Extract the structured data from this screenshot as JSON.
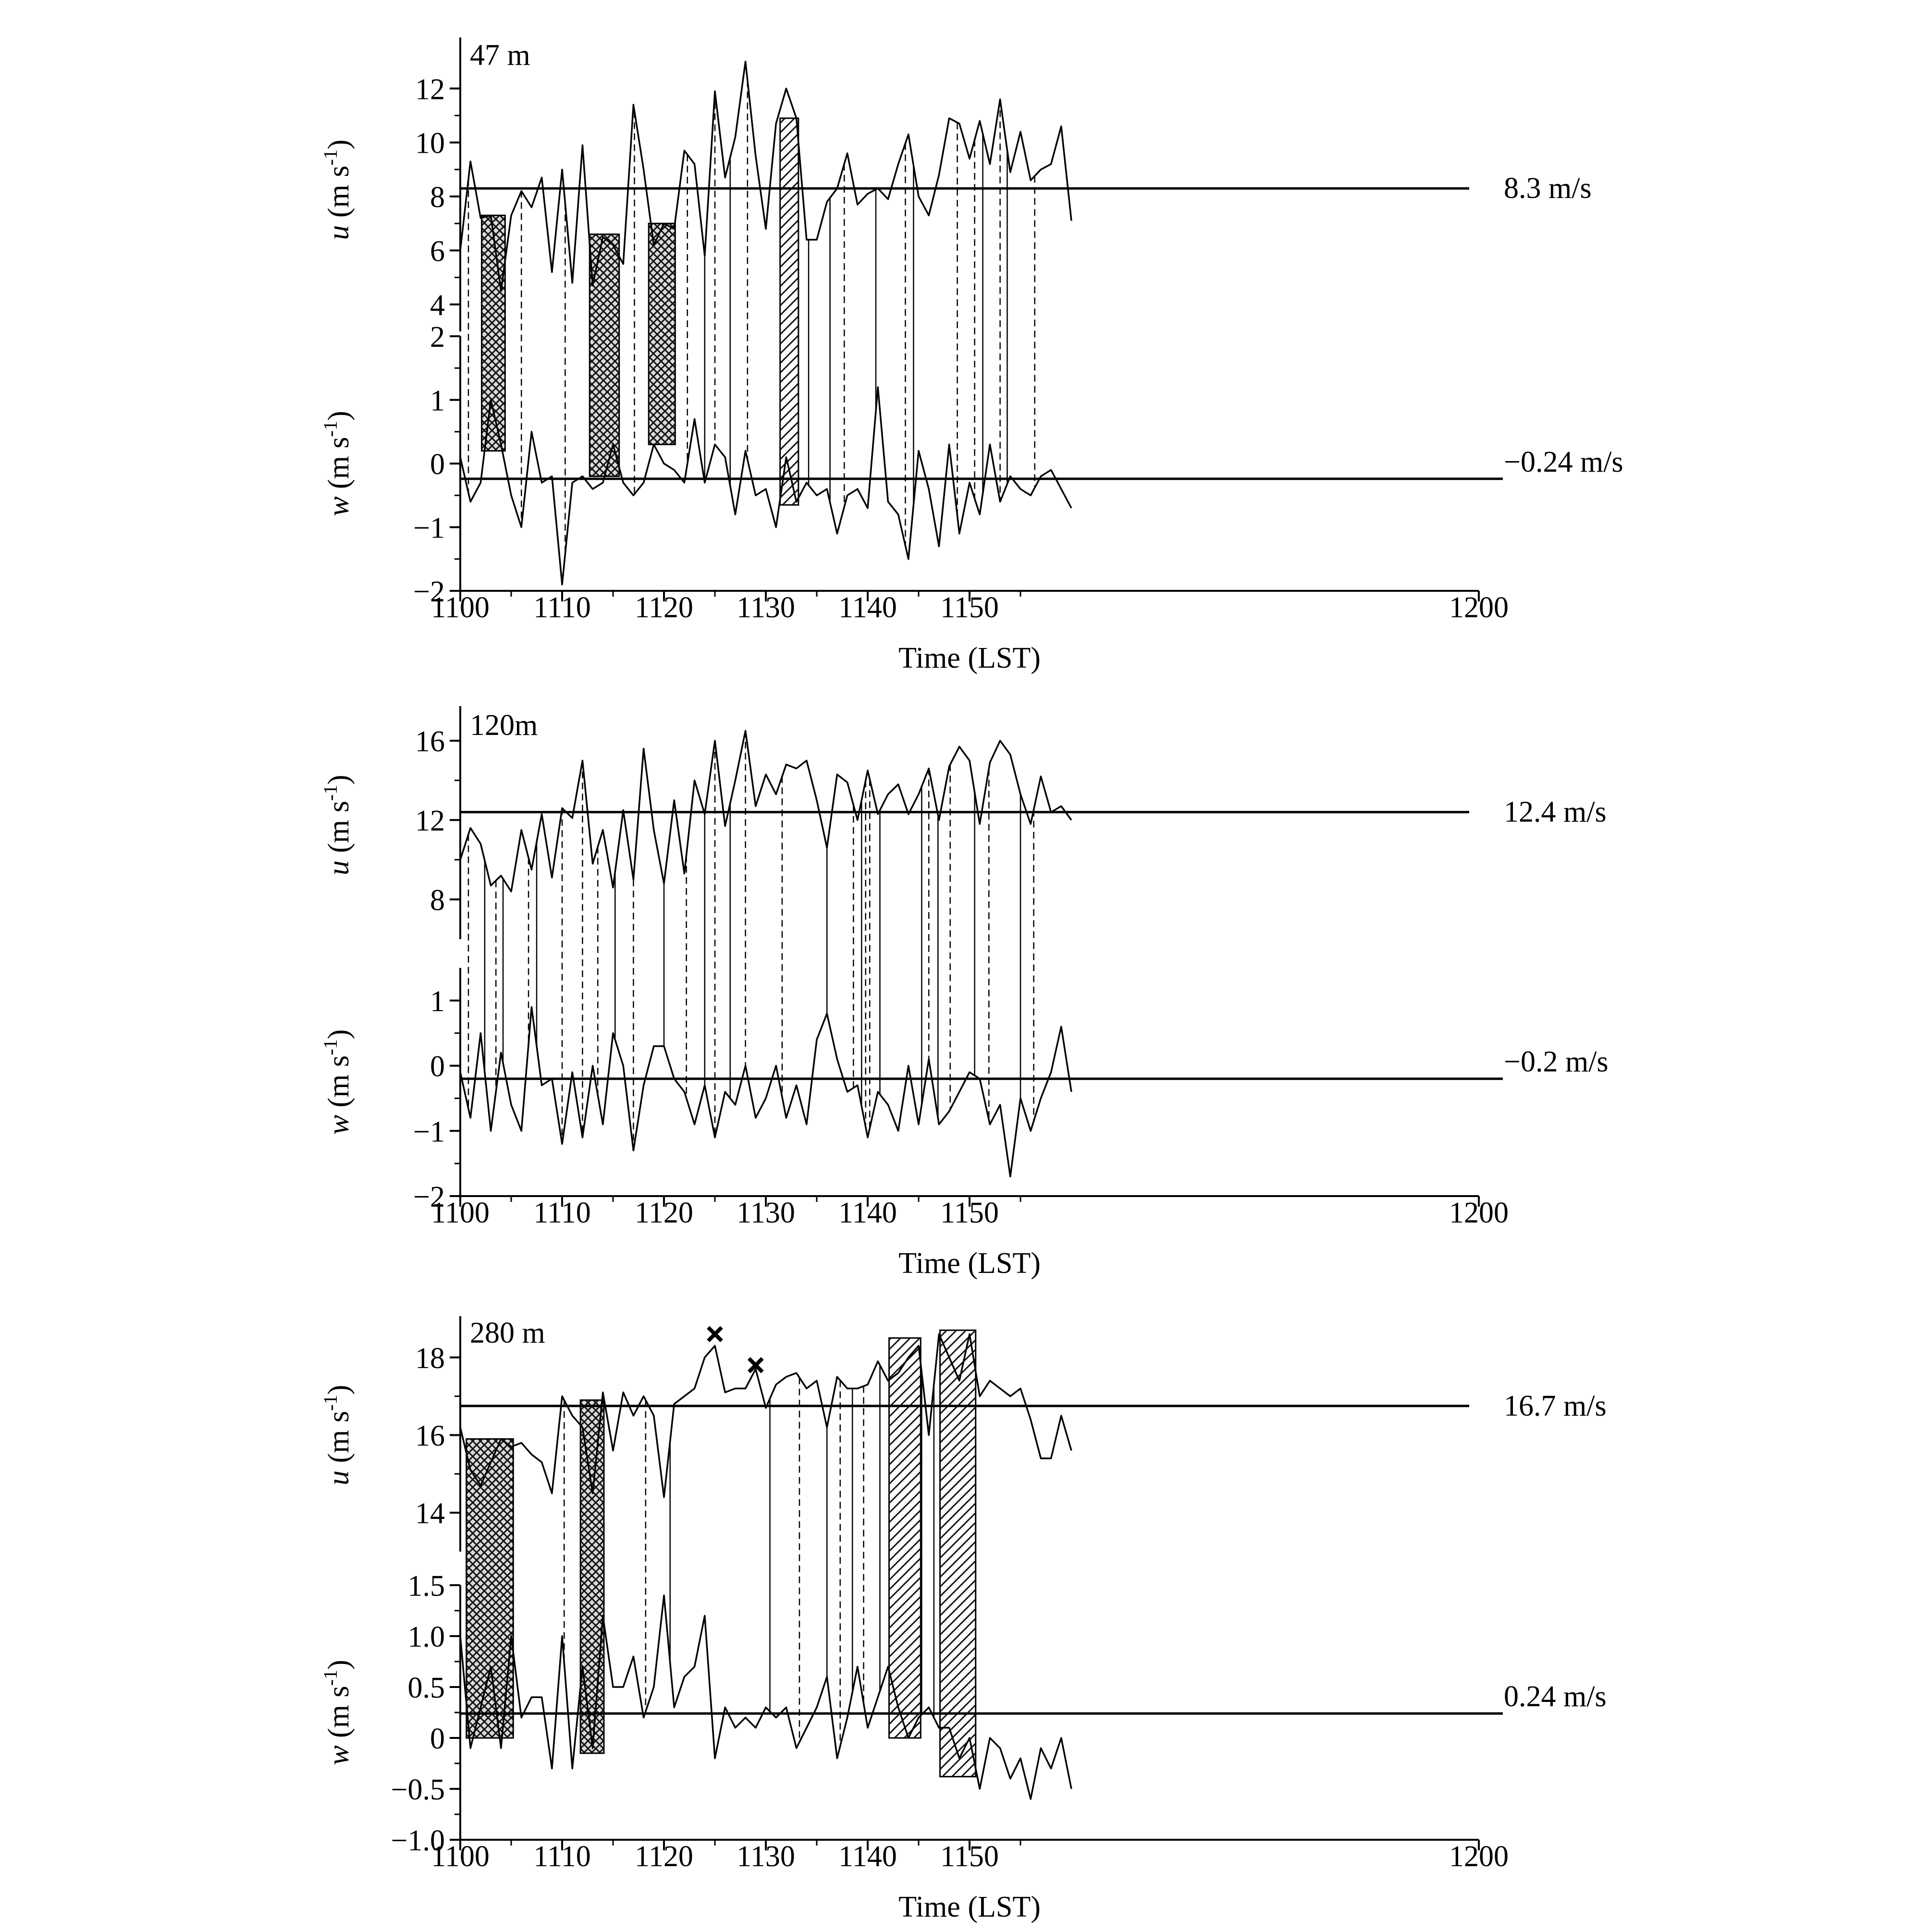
{
  "chart_data": [
    {
      "type": "line",
      "panel_label": "47 m",
      "xlabel": "Time (LST)",
      "x_ticks": [
        "1100",
        "1110",
        "1120",
        "1130",
        "1140",
        "1150",
        "1200"
      ],
      "x_range": [
        1100,
        1200
      ],
      "u": {
        "ylabel_var": "u",
        "ylabel_units": "(m s",
        "ylabel_exp": "-1",
        "ylabel_close": ")",
        "ylim": [
          3,
          13.5
        ],
        "ticks": [
          "4",
          "6",
          "8",
          "10",
          "12"
        ],
        "mean": 8.3,
        "mean_label": "8.3 m/s",
        "x": [
          1100,
          1101,
          1102,
          1103,
          1104,
          1105,
          1106,
          1107,
          1108,
          1109,
          1110,
          1111,
          1112,
          1113,
          1114,
          1115,
          1116,
          1117,
          1118,
          1119,
          1120,
          1121,
          1122,
          1123,
          1124,
          1125,
          1126,
          1127,
          1128,
          1129,
          1130,
          1131,
          1132,
          1133,
          1134,
          1135,
          1136,
          1137,
          1138,
          1139,
          1140,
          1141,
          1142,
          1143,
          1144,
          1145,
          1146,
          1147,
          1148,
          1149,
          1150,
          1151,
          1152,
          1153,
          1154,
          1155,
          1156,
          1157,
          1158,
          1159,
          1160
        ],
        "values": [
          6.0,
          9.3,
          7.2,
          7.3,
          4.5,
          7.3,
          8.2,
          7.6,
          8.7,
          5.2,
          9.0,
          4.8,
          9.9,
          4.7,
          6.5,
          6.2,
          5.5,
          11.4,
          9.0,
          6.2,
          7.0,
          6.8,
          9.7,
          9.2,
          5.8,
          11.9,
          8.7,
          10.2,
          13.0,
          9.5,
          6.8,
          10.7,
          12.0,
          10.9,
          6.4,
          6.4,
          7.8,
          8.3,
          9.6,
          7.7,
          8.1,
          8.3,
          7.9,
          9.2,
          10.3,
          8.0,
          7.3,
          8.8,
          10.9,
          10.7,
          9.4,
          10.8,
          9.2,
          11.6,
          8.9,
          10.4,
          8.6,
          9.0,
          9.2,
          10.6,
          7.1
        ]
      },
      "w": {
        "ylabel_var": "w",
        "ylabel_units": "(m s",
        "ylabel_exp": "-1",
        "ylabel_close": ")",
        "ylim": [
          -2,
          2
        ],
        "ticks": [
          "−2",
          "−1",
          "0",
          "1",
          "2"
        ],
        "mean": -0.24,
        "mean_label": "−0.24 m/s",
        "x": [
          1100,
          1101,
          1102,
          1103,
          1104,
          1105,
          1106,
          1107,
          1108,
          1109,
          1110,
          1111,
          1112,
          1113,
          1114,
          1115,
          1116,
          1117,
          1118,
          1119,
          1120,
          1121,
          1122,
          1123,
          1124,
          1125,
          1126,
          1127,
          1128,
          1129,
          1130,
          1131,
          1132,
          1133,
          1134,
          1135,
          1136,
          1137,
          1138,
          1139,
          1140,
          1141,
          1142,
          1143,
          1144,
          1145,
          1146,
          1147,
          1148,
          1149,
          1150,
          1151,
          1152,
          1153,
          1154,
          1155,
          1156,
          1157,
          1158,
          1159,
          1160
        ],
        "values": [
          0.1,
          -0.6,
          -0.3,
          1.0,
          0.3,
          -0.5,
          -1.0,
          0.5,
          -0.3,
          -0.2,
          -1.9,
          -0.3,
          -0.2,
          -0.4,
          -0.3,
          0.3,
          -0.3,
          -0.5,
          -0.3,
          0.3,
          0.0,
          -0.1,
          -0.3,
          0.7,
          -0.3,
          0.3,
          0.1,
          -0.8,
          0.2,
          -0.5,
          -0.4,
          -1.0,
          0.1,
          -0.6,
          -0.3,
          -0.5,
          -0.4,
          -1.1,
          -0.5,
          -0.4,
          -0.7,
          1.2,
          -0.6,
          -0.8,
          -1.5,
          0.2,
          -0.4,
          -1.3,
          0.3,
          -1.1,
          -0.3,
          -0.8,
          0.3,
          -0.6,
          -0.2,
          -0.4,
          -0.5,
          -0.2,
          -0.1,
          -0.4,
          -0.7
        ]
      },
      "ticks_dashed": [
        1100.8,
        1106,
        1110.3,
        1117.1,
        1122.3,
        1125,
        1128.2,
        1137.7,
        1143.7,
        1148.8,
        1150.5,
        1153,
        1156.4
      ],
      "ticks_solid": [
        1124,
        1126.5,
        1134.2,
        1136.3,
        1140.8,
        1144.5,
        1151.3,
        1153.7
      ],
      "boxes": [
        {
          "x0": 1102.1,
          "x1": 1104.4,
          "y_top": 7.3,
          "y_bottom": 0.2,
          "pattern": "cross"
        },
        {
          "x0": 1112.7,
          "x1": 1115.6,
          "y_top": 6.6,
          "y_bottom": -0.2,
          "pattern": "cross"
        },
        {
          "x0": 1118.5,
          "x1": 1121.1,
          "y_top": 7.0,
          "y_bottom": 0.3,
          "pattern": "cross"
        },
        {
          "x0": 1131.4,
          "x1": 1133.2,
          "y_top": 10.9,
          "y_bottom": -0.65,
          "pattern": "diag"
        }
      ]
    },
    {
      "type": "line",
      "panel_label": "120m",
      "xlabel": "Time (LST)",
      "x_ticks": [
        "1100",
        "1110",
        "1120",
        "1130",
        "1140",
        "1150",
        "1200"
      ],
      "x_range": [
        1100,
        1200
      ],
      "u": {
        "ylabel_var": "u",
        "ylabel_units": "(m s",
        "ylabel_exp": "-1",
        "ylabel_close": ")",
        "ylim": [
          6,
          17.5
        ],
        "ticks": [
          "8",
          "12",
          "16"
        ],
        "mean": 12.4,
        "mean_label": "12.4 m/s",
        "x": [
          1100,
          1101,
          1102,
          1103,
          1104,
          1105,
          1106,
          1107,
          1108,
          1109,
          1110,
          1111,
          1112,
          1113,
          1114,
          1115,
          1116,
          1117,
          1118,
          1119,
          1120,
          1121,
          1122,
          1123,
          1124,
          1125,
          1126,
          1127,
          1128,
          1129,
          1130,
          1131,
          1132,
          1133,
          1134,
          1135,
          1136,
          1137,
          1138,
          1139,
          1140,
          1141,
          1142,
          1143,
          1144,
          1145,
          1146,
          1147,
          1148,
          1149,
          1150,
          1151,
          1152,
          1153,
          1154,
          1155,
          1156,
          1157,
          1158,
          1159,
          1160
        ],
        "values": [
          10.0,
          11.6,
          10.8,
          8.7,
          9.2,
          8.4,
          11.5,
          9.5,
          12.3,
          9.1,
          12.6,
          12.1,
          15.0,
          9.8,
          11.5,
          8.6,
          12.5,
          9.0,
          15.6,
          11.5,
          8.8,
          13.0,
          9.3,
          14.0,
          12.3,
          16.0,
          11.7,
          14.0,
          16.5,
          12.7,
          14.3,
          13.3,
          14.8,
          14.6,
          15.0,
          13.0,
          10.6,
          14.3,
          13.9,
          12.0,
          14.5,
          12.3,
          13.3,
          13.8,
          12.3,
          13.3,
          14.6,
          12.0,
          14.7,
          15.7,
          15.0,
          11.8,
          14.9,
          16.0,
          15.3,
          13.3,
          11.8,
          14.2,
          12.4,
          12.7,
          12.0
        ]
      },
      "w": {
        "ylabel_var": "w",
        "ylabel_units": "(m s",
        "ylabel_exp": "-1",
        "ylabel_close": ")",
        "ylim": [
          -2,
          1.5
        ],
        "ticks": [
          "−2",
          "−1",
          "0",
          "1"
        ],
        "mean": -0.2,
        "mean_label": "−0.2 m/s",
        "x": [
          1100,
          1101,
          1102,
          1103,
          1104,
          1105,
          1106,
          1107,
          1108,
          1109,
          1110,
          1111,
          1112,
          1113,
          1114,
          1115,
          1116,
          1117,
          1118,
          1119,
          1120,
          1121,
          1122,
          1123,
          1124,
          1125,
          1126,
          1127,
          1128,
          1129,
          1130,
          1131,
          1132,
          1133,
          1134,
          1135,
          1136,
          1137,
          1138,
          1139,
          1140,
          1141,
          1142,
          1143,
          1144,
          1145,
          1146,
          1147,
          1148,
          1149,
          1150,
          1151,
          1152,
          1153,
          1154,
          1155,
          1156,
          1157,
          1158,
          1159,
          1160
        ],
        "values": [
          -0.1,
          -0.8,
          0.5,
          -1.0,
          0.2,
          -0.6,
          -1.0,
          0.9,
          -0.3,
          -0.2,
          -1.2,
          -0.1,
          -1.1,
          0.0,
          -0.9,
          0.5,
          0.0,
          -1.3,
          -0.3,
          0.3,
          0.3,
          -0.2,
          -0.4,
          -0.9,
          -0.3,
          -1.1,
          -0.4,
          -0.6,
          0.0,
          -0.8,
          -0.5,
          0.0,
          -0.8,
          -0.3,
          -0.9,
          0.4,
          0.8,
          0.1,
          -0.4,
          -0.3,
          -1.1,
          -0.4,
          -0.6,
          -1.0,
          0.0,
          -0.9,
          0.1,
          -0.9,
          -0.7,
          -0.4,
          -0.1,
          -0.2,
          -0.9,
          -0.6,
          -1.7,
          -0.5,
          -1.0,
          -0.5,
          -0.1,
          0.6,
          -0.4
        ]
      },
      "ticks_dashed": [
        1100.8,
        1103.5,
        1106.7,
        1110,
        1112,
        1113.5,
        1117,
        1122.2,
        1125,
        1128,
        1131.6,
        1138.6,
        1139.8,
        1140.2,
        1146,
        1148.1,
        1151.9,
        1156.3
      ],
      "ticks_solid": [
        1102.4,
        1104.2,
        1107.5,
        1115.2,
        1120,
        1124,
        1126.5,
        1136,
        1139.4,
        1141.2,
        1145.3,
        1146.9,
        1150.5,
        1155
      ],
      "boxes": []
    },
    {
      "type": "line",
      "panel_label": "280 m",
      "xlabel": "Time (LST)",
      "x_ticks": [
        "1100",
        "1110",
        "1120",
        "1130",
        "1140",
        "1150",
        "1200"
      ],
      "x_range": [
        1100,
        1200
      ],
      "u": {
        "ylabel_var": "u",
        "ylabel_units": "(m s",
        "ylabel_exp": "-1",
        "ylabel_close": ")",
        "ylim": [
          13,
          19
        ],
        "ticks": [
          "14",
          "16",
          "18"
        ],
        "mean": 16.75,
        "mean_label": "16.7 m/s",
        "x": [
          1100,
          1101,
          1102,
          1103,
          1104,
          1105,
          1106,
          1107,
          1108,
          1109,
          1110,
          1111,
          1112,
          1113,
          1114,
          1115,
          1116,
          1117,
          1118,
          1119,
          1120,
          1121,
          1122,
          1123,
          1124,
          1125,
          1126,
          1127,
          1128,
          1129,
          1130,
          1131,
          1132,
          1133,
          1134,
          1135,
          1136,
          1137,
          1138,
          1139,
          1140,
          1141,
          1142,
          1143,
          1144,
          1145,
          1146,
          1147,
          1148,
          1149,
          1150,
          1151,
          1152,
          1153,
          1154,
          1155,
          1156,
          1157,
          1158,
          1159,
          1160
        ],
        "values": [
          16.2,
          15.1,
          14.7,
          15.3,
          15.9,
          15.7,
          15.8,
          15.5,
          15.3,
          14.5,
          17.0,
          16.5,
          16.2,
          14.5,
          17.1,
          15.6,
          17.1,
          16.5,
          17.0,
          16.5,
          14.4,
          16.8,
          17.0,
          17.2,
          18.0,
          18.3,
          17.1,
          17.2,
          17.2,
          17.7,
          16.7,
          17.3,
          17.5,
          17.6,
          17.2,
          17.4,
          16.2,
          17.5,
          17.2,
          17.2,
          17.3,
          17.9,
          17.4,
          17.6,
          18.0,
          18.3,
          16.0,
          18.6,
          18.0,
          17.4,
          18.6,
          17.0,
          17.4,
          17.2,
          17.0,
          17.2,
          16.4,
          15.4,
          15.4,
          16.5,
          15.6
        ]
      },
      "w": {
        "ylabel_var": "w",
        "ylabel_units": "(m s",
        "ylabel_exp": "-1",
        "ylabel_close": ")",
        "ylim": [
          -1.0,
          1.5
        ],
        "ticks": [
          "−1.0",
          "−0.5",
          "0",
          "0.5",
          "1.0",
          "1.5"
        ],
        "mean": 0.24,
        "mean_label": "0.24 m/s",
        "x": [
          1100,
          1101,
          1102,
          1103,
          1104,
          1105,
          1106,
          1107,
          1108,
          1109,
          1110,
          1111,
          1112,
          1113,
          1114,
          1115,
          1116,
          1117,
          1118,
          1119,
          1120,
          1121,
          1122,
          1123,
          1124,
          1125,
          1126,
          1127,
          1128,
          1129,
          1130,
          1131,
          1132,
          1133,
          1134,
          1135,
          1136,
          1137,
          1138,
          1139,
          1140,
          1141,
          1142,
          1143,
          1144,
          1145,
          1146,
          1147,
          1148,
          1149,
          1150,
          1151,
          1152,
          1153,
          1154,
          1155,
          1156,
          1157,
          1158,
          1159,
          1160
        ],
        "values": [
          1.0,
          -0.1,
          0.3,
          0.7,
          -0.1,
          1.0,
          0.2,
          0.4,
          0.4,
          -0.3,
          1.0,
          -0.3,
          0.7,
          -0.1,
          1.2,
          0.5,
          0.5,
          0.8,
          0.2,
          0.5,
          1.4,
          0.3,
          0.6,
          0.7,
          1.2,
          -0.2,
          0.3,
          0.1,
          0.2,
          0.1,
          0.3,
          0.2,
          0.3,
          -0.1,
          0.1,
          0.3,
          0.6,
          -0.2,
          0.2,
          0.7,
          0.1,
          0.4,
          0.7,
          0.3,
          0.0,
          0.2,
          0.3,
          0.1,
          0.1,
          -0.2,
          0.0,
          -0.5,
          0.0,
          -0.1,
          -0.4,
          -0.2,
          -0.6,
          -0.1,
          -0.3,
          0.0,
          -0.5
        ]
      },
      "ticks_dashed": [
        1110.2,
        1118.2,
        1133.3,
        1137.3,
        1139.6
      ],
      "ticks_solid": [
        1120.6,
        1130.4,
        1136,
        1138.5,
        1141.2,
        1145.3,
        1146.5
      ],
      "boxes": [
        {
          "x0": 1100.6,
          "x1": 1105.2,
          "y_top": 15.9,
          "y_bottom": 0.0,
          "pattern": "cross"
        },
        {
          "x0": 1111.8,
          "x1": 1114.1,
          "y_top": 16.9,
          "y_bottom": -0.15,
          "pattern": "cross"
        },
        {
          "x0": 1142.1,
          "x1": 1145.2,
          "y_top": 18.5,
          "y_bottom": 0.0,
          "pattern": "diag"
        },
        {
          "x0": 1147.1,
          "x1": 1150.6,
          "y_top": 18.7,
          "y_bottom": -0.38,
          "pattern": "diag"
        }
      ],
      "markers": [
        {
          "x": 1125,
          "y": 18.6
        },
        {
          "x": 1129,
          "y": 17.8
        }
      ]
    }
  ]
}
